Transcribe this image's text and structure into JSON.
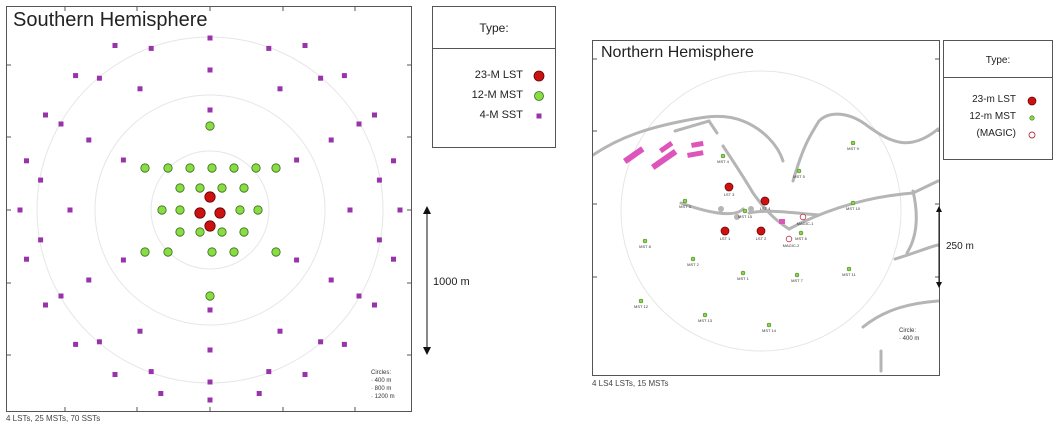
{
  "south": {
    "title": "Southern Hemisphere",
    "legend": {
      "title": "Type:",
      "items": [
        {
          "label": "23-M LST",
          "color": "#cc1111"
        },
        {
          "label": "12-M MST",
          "color": "#88dd44"
        },
        {
          "label": "4-M SST",
          "color": "#9933aa"
        }
      ]
    },
    "scale_label": "1000 m",
    "circles_title": "Circles:",
    "circles": [
      "400 m",
      "800 m",
      "1200 m"
    ],
    "footer": "4 LSTs, 25 MSTs, 70 SSTs"
  },
  "north": {
    "title": "Northern Hemisphere",
    "legend": {
      "title": "Type:",
      "items": [
        {
          "label": "23-m LST",
          "color": "#cc1111"
        },
        {
          "label": "12-m MST",
          "color": "#88dd44"
        },
        {
          "label": "(MAGIC)",
          "color": "#bb3344"
        }
      ]
    },
    "scale_label": "250 m",
    "circles_title": "Circle:",
    "circles": [
      "400 m"
    ],
    "footer": "4 LS4 LSTs, 15 MSTs",
    "telescope_labels": {
      "lst1": "LST 1",
      "lst2": "LST 2",
      "lst3": "LST 3",
      "lst4": "LST 4",
      "mst1": "MST 1",
      "mst2": "MST 2",
      "mst3": "MST 3",
      "mst4": "MST 4",
      "mst5": "MST 5",
      "mst6": "MST 6",
      "mst7": "MST 7",
      "mst8": "MST 8",
      "mst9": "MST 9",
      "mst10": "MST 10",
      "mst11": "MST 11",
      "mst12": "MST 12",
      "mst13": "MST 13",
      "mst14": "MST 14",
      "mst15": "MST 15",
      "magic1": "MAGIC-1",
      "magic2": "MAGIC-2"
    }
  }
}
